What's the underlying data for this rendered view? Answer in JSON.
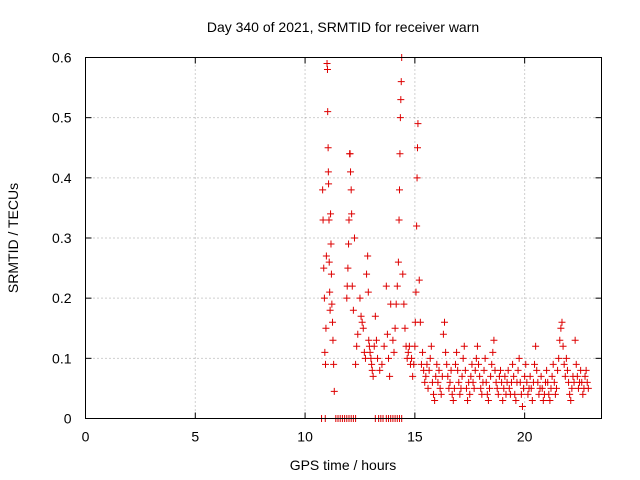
{
  "chart_data": {
    "type": "scatter",
    "title": "Day 340 of 2021, SRMTID for receiver warn",
    "xlabel": "GPS time / hours",
    "ylabel": "SRMTID / TECUs",
    "xlim": [
      0,
      23.5
    ],
    "ylim": [
      0,
      0.6
    ],
    "x_ticks": [
      0,
      5,
      10,
      15,
      20
    ],
    "x_tick_labels": [
      "0",
      "5",
      "10",
      "15",
      "20"
    ],
    "y_ticks": [
      0,
      0.1,
      0.2,
      0.3,
      0.4,
      0.5,
      0.6
    ],
    "y_tick_labels": [
      "0",
      "0.1",
      "0.2",
      "0.3",
      "0.4",
      "0.5",
      "0.6"
    ],
    "grid": true,
    "marker": "plus",
    "colors": {
      "series": "#dd0000"
    },
    "series": [
      {
        "name": "SRMTID",
        "points": [
          [
            10.75,
            0
          ],
          [
            10.92,
            0
          ],
          [
            11.4,
            0
          ],
          [
            11.5,
            0
          ],
          [
            11.6,
            0
          ],
          [
            11.7,
            0
          ],
          [
            11.8,
            0
          ],
          [
            11.9,
            0
          ],
          [
            12.0,
            0
          ],
          [
            12.1,
            0
          ],
          [
            12.2,
            0
          ],
          [
            12.3,
            0
          ],
          [
            13.2,
            0
          ],
          [
            13.35,
            0
          ],
          [
            13.45,
            0
          ],
          [
            13.55,
            0
          ],
          [
            13.7,
            0
          ],
          [
            13.8,
            0
          ],
          [
            13.9,
            0
          ],
          [
            14.0,
            0
          ],
          [
            14.1,
            0
          ],
          [
            14.2,
            0
          ],
          [
            14.3,
            0
          ],
          [
            14.4,
            0
          ],
          [
            10.8,
            0.38
          ],
          [
            10.82,
            0.33
          ],
          [
            10.85,
            0.25
          ],
          [
            10.88,
            0.2
          ],
          [
            10.9,
            0.11
          ],
          [
            10.93,
            0.09
          ],
          [
            10.95,
            0.15
          ],
          [
            10.97,
            0.27
          ],
          [
            11.0,
            0.59
          ],
          [
            11.02,
            0.58
          ],
          [
            11.03,
            0.51
          ],
          [
            11.05,
            0.45
          ],
          [
            11.06,
            0.41
          ],
          [
            11.07,
            0.39
          ],
          [
            11.09,
            0.33
          ],
          [
            11.1,
            0.26
          ],
          [
            11.12,
            0.21
          ],
          [
            11.14,
            0.18
          ],
          [
            11.16,
            0.34
          ],
          [
            11.18,
            0.29
          ],
          [
            11.2,
            0.24
          ],
          [
            11.22,
            0.19
          ],
          [
            11.25,
            0.16
          ],
          [
            11.27,
            0.13
          ],
          [
            11.3,
            0.09
          ],
          [
            11.33,
            0.045
          ],
          [
            11.9,
            0.2
          ],
          [
            11.92,
            0.22
          ],
          [
            11.95,
            0.25
          ],
          [
            11.98,
            0.29
          ],
          [
            12.0,
            0.33
          ],
          [
            12.03,
            0.44
          ],
          [
            12.05,
            0.44
          ],
          [
            12.07,
            0.41
          ],
          [
            12.1,
            0.38
          ],
          [
            12.12,
            0.34
          ],
          [
            12.15,
            0.22
          ],
          [
            12.2,
            0.18
          ],
          [
            12.25,
            0.3
          ],
          [
            12.3,
            0.09
          ],
          [
            12.35,
            0.12
          ],
          [
            12.4,
            0.14
          ],
          [
            12.5,
            0.2
          ],
          [
            12.55,
            0.17
          ],
          [
            12.6,
            0.16
          ],
          [
            12.65,
            0.15
          ],
          [
            12.7,
            0.11
          ],
          [
            12.75,
            0.1
          ],
          [
            12.8,
            0.24
          ],
          [
            12.85,
            0.27
          ],
          [
            12.88,
            0.21
          ],
          [
            12.9,
            0.13
          ],
          [
            12.93,
            0.12
          ],
          [
            12.96,
            0.11
          ],
          [
            13.0,
            0.1
          ],
          [
            13.03,
            0.09
          ],
          [
            13.06,
            0.08
          ],
          [
            13.1,
            0.07
          ],
          [
            13.15,
            0.12
          ],
          [
            13.2,
            0.17
          ],
          [
            13.25,
            0.13
          ],
          [
            13.3,
            0.1
          ],
          [
            13.4,
            0.08
          ],
          [
            13.5,
            0.09
          ],
          [
            13.6,
            0.12
          ],
          [
            13.7,
            0.22
          ],
          [
            13.75,
            0.14
          ],
          [
            13.8,
            0.1
          ],
          [
            13.85,
            0.07
          ],
          [
            13.9,
            0.19
          ],
          [
            14.0,
            0.13
          ],
          [
            14.05,
            0.11
          ],
          [
            14.1,
            0.15
          ],
          [
            14.15,
            0.19
          ],
          [
            14.2,
            0.22
          ],
          [
            14.25,
            0.26
          ],
          [
            14.28,
            0.33
          ],
          [
            14.3,
            0.38
          ],
          [
            14.32,
            0.44
          ],
          [
            14.34,
            0.5
          ],
          [
            14.36,
            0.53
          ],
          [
            14.38,
            0.56
          ],
          [
            14.4,
            0.6
          ],
          [
            14.45,
            0.24
          ],
          [
            14.5,
            0.19
          ],
          [
            14.55,
            0.15
          ],
          [
            14.6,
            0.12
          ],
          [
            14.65,
            0.1
          ],
          [
            14.7,
            0.11
          ],
          [
            14.75,
            0.12
          ],
          [
            14.8,
            0.09
          ],
          [
            14.85,
            0.1
          ],
          [
            14.9,
            0.07
          ],
          [
            14.95,
            0.09
          ],
          [
            15.0,
            0.12
          ],
          [
            15.02,
            0.16
          ],
          [
            15.05,
            0.21
          ],
          [
            15.08,
            0.32
          ],
          [
            15.1,
            0.4
          ],
          [
            15.12,
            0.45
          ],
          [
            15.14,
            0.49
          ],
          [
            15.2,
            0.23
          ],
          [
            15.25,
            0.16
          ],
          [
            15.3,
            0.09
          ],
          [
            15.35,
            0.11
          ],
          [
            15.4,
            0.08
          ],
          [
            15.45,
            0.06
          ],
          [
            15.5,
            0.07
          ],
          [
            15.55,
            0.09
          ],
          [
            15.6,
            0.05
          ],
          [
            15.65,
            0.08
          ],
          [
            15.7,
            0.1
          ],
          [
            15.75,
            0.12
          ],
          [
            15.8,
            0.06
          ],
          [
            15.85,
            0.04
          ],
          [
            15.9,
            0.03
          ],
          [
            15.95,
            0.07
          ],
          [
            16.0,
            0.09
          ],
          [
            16.05,
            0.06
          ],
          [
            16.1,
            0.08
          ],
          [
            16.15,
            0.05
          ],
          [
            16.2,
            0.04
          ],
          [
            16.25,
            0.07
          ],
          [
            16.3,
            0.14
          ],
          [
            16.35,
            0.16
          ],
          [
            16.4,
            0.11
          ],
          [
            16.45,
            0.09
          ],
          [
            16.5,
            0.07
          ],
          [
            16.55,
            0.05
          ],
          [
            16.6,
            0.06
          ],
          [
            16.65,
            0.08
          ],
          [
            16.7,
            0.04
          ],
          [
            16.75,
            0.03
          ],
          [
            16.8,
            0.05
          ],
          [
            16.85,
            0.09
          ],
          [
            16.9,
            0.11
          ],
          [
            16.95,
            0.08
          ],
          [
            17.0,
            0.06
          ],
          [
            17.05,
            0.04
          ],
          [
            17.1,
            0.05
          ],
          [
            17.15,
            0.07
          ],
          [
            17.2,
            0.1
          ],
          [
            17.25,
            0.12
          ],
          [
            17.3,
            0.08
          ],
          [
            17.35,
            0.05
          ],
          [
            17.4,
            0.03
          ],
          [
            17.45,
            0.06
          ],
          [
            17.5,
            0.04
          ],
          [
            17.55,
            0.07
          ],
          [
            17.6,
            0.09
          ],
          [
            17.65,
            0.06
          ],
          [
            17.7,
            0.05
          ],
          [
            17.75,
            0.08
          ],
          [
            17.8,
            0.1
          ],
          [
            17.85,
            0.12
          ],
          [
            17.9,
            0.09
          ],
          [
            17.95,
            0.07
          ],
          [
            18.0,
            0.05
          ],
          [
            18.05,
            0.04
          ],
          [
            18.1,
            0.06
          ],
          [
            18.15,
            0.08
          ],
          [
            18.2,
            0.1
          ],
          [
            18.25,
            0.06
          ],
          [
            18.3,
            0.04
          ],
          [
            18.35,
            0.03
          ],
          [
            18.4,
            0.05
          ],
          [
            18.45,
            0.07
          ],
          [
            18.5,
            0.09
          ],
          [
            18.55,
            0.11
          ],
          [
            18.6,
            0.13
          ],
          [
            18.65,
            0.08
          ],
          [
            18.7,
            0.06
          ],
          [
            18.75,
            0.05
          ],
          [
            18.8,
            0.04
          ],
          [
            18.85,
            0.07
          ],
          [
            18.9,
            0.08
          ],
          [
            18.95,
            0.06
          ],
          [
            19.0,
            0.03
          ],
          [
            19.05,
            0.05
          ],
          [
            19.1,
            0.07
          ],
          [
            19.15,
            0.04
          ],
          [
            19.2,
            0.06
          ],
          [
            19.25,
            0.08
          ],
          [
            19.3,
            0.05
          ],
          [
            19.35,
            0.04
          ],
          [
            19.4,
            0.06
          ],
          [
            19.45,
            0.09
          ],
          [
            19.5,
            0.07
          ],
          [
            19.55,
            0.04
          ],
          [
            19.6,
            0.03
          ],
          [
            19.65,
            0.06
          ],
          [
            19.7,
            0.08
          ],
          [
            19.75,
            0.1
          ],
          [
            19.8,
            0.06
          ],
          [
            19.85,
            0.04
          ],
          [
            19.9,
            0.02
          ],
          [
            19.95,
            0.05
          ],
          [
            20.0,
            0.07
          ],
          [
            20.05,
            0.09
          ],
          [
            20.1,
            0.06
          ],
          [
            20.15,
            0.04
          ],
          [
            20.2,
            0.05
          ],
          [
            20.25,
            0.07
          ],
          [
            20.3,
            0.05
          ],
          [
            20.35,
            0.03
          ],
          [
            20.4,
            0.06
          ],
          [
            20.45,
            0.09
          ],
          [
            20.5,
            0.12
          ],
          [
            20.55,
            0.08
          ],
          [
            20.6,
            0.06
          ],
          [
            20.65,
            0.04
          ],
          [
            20.7,
            0.05
          ],
          [
            20.75,
            0.07
          ],
          [
            20.8,
            0.05
          ],
          [
            20.85,
            0.03
          ],
          [
            20.9,
            0.04
          ],
          [
            20.95,
            0.06
          ],
          [
            21.0,
            0.08
          ],
          [
            21.05,
            0.06
          ],
          [
            21.1,
            0.04
          ],
          [
            21.15,
            0.03
          ],
          [
            21.2,
            0.05
          ],
          [
            21.25,
            0.07
          ],
          [
            21.3,
            0.09
          ],
          [
            21.35,
            0.06
          ],
          [
            21.4,
            0.04
          ],
          [
            21.45,
            0.05
          ],
          [
            21.5,
            0.08
          ],
          [
            21.55,
            0.1
          ],
          [
            21.6,
            0.13
          ],
          [
            21.65,
            0.15
          ],
          [
            21.7,
            0.16
          ],
          [
            21.75,
            0.12
          ],
          [
            21.8,
            0.09
          ],
          [
            21.85,
            0.07
          ],
          [
            21.9,
            0.1
          ],
          [
            21.95,
            0.08
          ],
          [
            22.0,
            0.06
          ],
          [
            22.05,
            0.04
          ],
          [
            22.1,
            0.03
          ],
          [
            22.15,
            0.05
          ],
          [
            22.2,
            0.07
          ],
          [
            22.25,
            0.06
          ],
          [
            22.3,
            0.13
          ],
          [
            22.35,
            0.09
          ],
          [
            22.4,
            0.07
          ],
          [
            22.45,
            0.05
          ],
          [
            22.5,
            0.06
          ],
          [
            22.55,
            0.08
          ],
          [
            22.6,
            0.06
          ],
          [
            22.65,
            0.04
          ],
          [
            22.7,
            0.05
          ],
          [
            22.75,
            0.07
          ],
          [
            22.8,
            0.08
          ],
          [
            22.85,
            0.06
          ],
          [
            22.9,
            0.05
          ]
        ]
      }
    ]
  }
}
